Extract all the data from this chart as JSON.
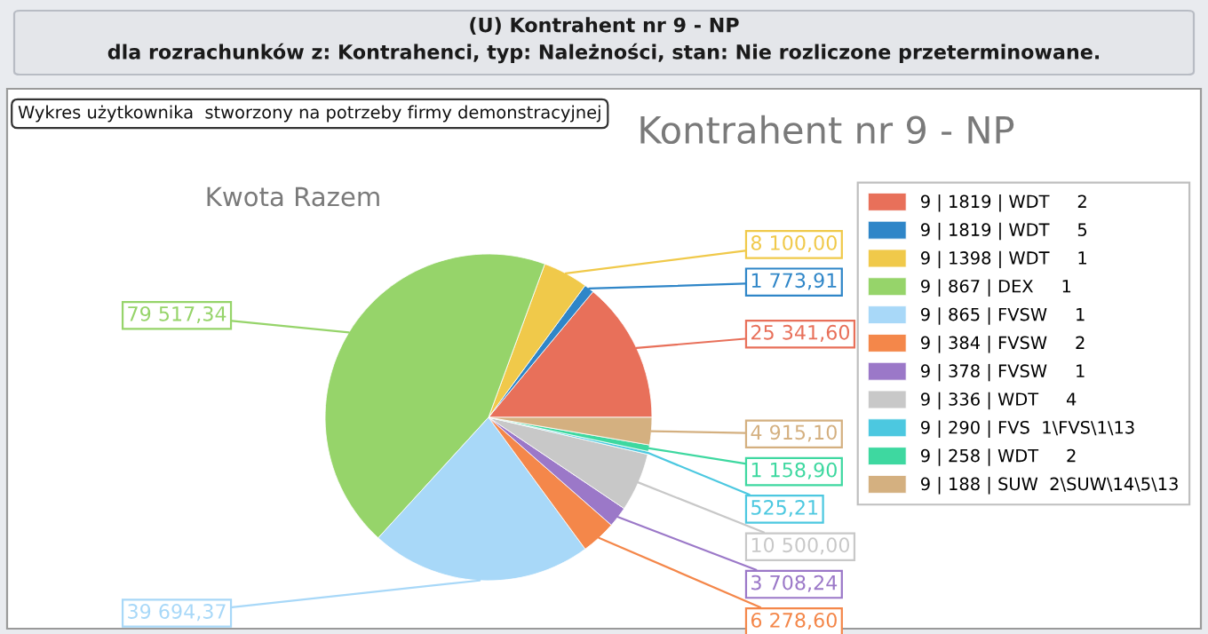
{
  "chart_data": {
    "type": "pie",
    "title": "(U) Kontrahent nr 9 - NP",
    "subtitle": "dla rozrachunków z: Kontrahenci, typ: Należności, stan: Nie rozliczone przeterminowane.",
    "annotations": [
      "Kontrahent nr 9 - NP",
      "Kwota Razem",
      "Wykres użytkownika  stworzony na potrzeby firmy demonstracyjnej"
    ],
    "categories": [
      "9 | 1819 | WDT     2",
      "9 | 1819 | WDT     5",
      "9 | 1398 | WDT     1",
      "9 | 867 | DEX     1",
      "9 | 865 | FVSW     1",
      "9 | 384 | FVSW     2",
      "9 | 378 | FVSW     1",
      "9 | 336 | WDT     4",
      "9 | 290 | FVS  1\\FVS\\1\\13",
      "9 | 258 | WDT     2",
      "9 | 188 | SUW  2\\SUW\\14\\5\\13"
    ],
    "values": [
      25341.6,
      1773.91,
      8100.0,
      79517.34,
      39694.37,
      6278.6,
      3708.24,
      10500.0,
      525.21,
      1158.9,
      4915.1
    ],
    "value_labels": [
      "25 341,60",
      "1 773,91",
      "8 100,00",
      "79 517,34",
      "39 694,37",
      "6 278,60",
      "3 708,24",
      "10 500,00",
      "525,21",
      "1 158,90",
      "4 915,10"
    ],
    "colors": [
      "#e8705a",
      "#2f86c8",
      "#f0c94a",
      "#96d46a",
      "#a8d8f8",
      "#f4874a",
      "#9b78c8",
      "#c8c8c8",
      "#4cc8e0",
      "#3ed8a0",
      "#d4b080"
    ],
    "legend": "right"
  }
}
